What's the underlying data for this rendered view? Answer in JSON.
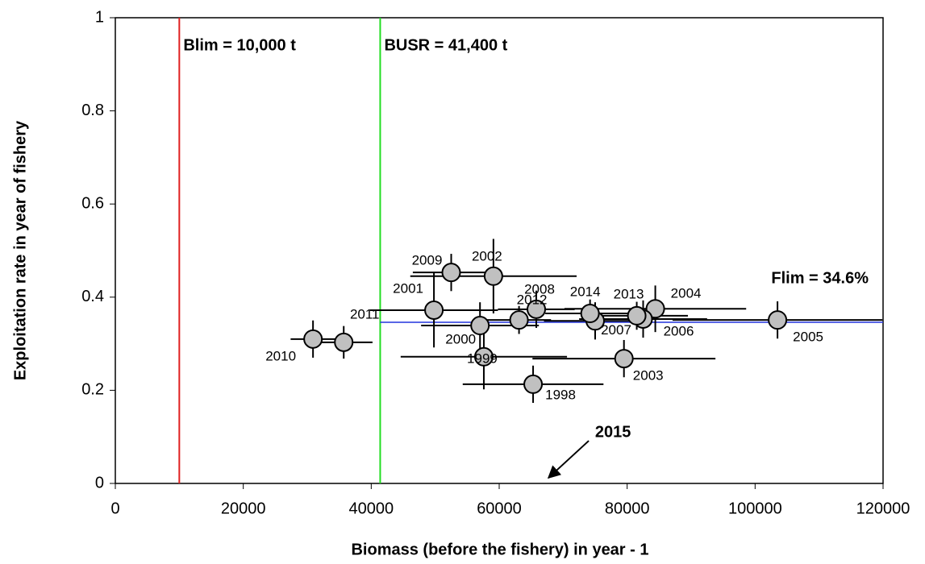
{
  "chart_data": {
    "type": "scatter",
    "x_label": "Biomass (before the fishery) in year - 1",
    "y_label": "Exploitation rate in year of fishery",
    "xlim": [
      0,
      120000
    ],
    "ylim": [
      0,
      1
    ],
    "xticks": [
      0,
      20000,
      40000,
      60000,
      80000,
      100000,
      120000
    ],
    "yticks": [
      0,
      0.2,
      0.4,
      0.6,
      0.8,
      1
    ],
    "series": [
      {
        "color": "#c0c0c0",
        "labels": [
          "1998",
          "1999",
          "2000",
          "2001",
          "2002",
          "2003",
          "2004",
          "2005",
          "2006",
          "2007",
          "2008",
          "2009",
          "2010",
          "2011",
          "2012",
          "2013",
          "2014"
        ],
        "x": [
          65300,
          57600,
          57000,
          49800,
          59100,
          79500,
          84400,
          103500,
          82500,
          75000,
          65800,
          52500,
          30900,
          35700,
          63100,
          81500,
          74200
        ],
        "values": [
          0.213,
          0.272,
          0.339,
          0.372,
          0.445,
          0.268,
          0.375,
          0.351,
          0.353,
          0.349,
          0.374,
          0.453,
          0.31,
          0.303,
          0.351,
          0.36,
          0.365
        ],
        "x_err": [
          11000,
          13000,
          9200,
          10000,
          13000,
          14300,
          14200,
          16400,
          10000,
          8000,
          6000,
          6000,
          3500,
          4500,
          5000,
          8000,
          7000
        ],
        "y_err": [
          0.04,
          0.07,
          0.05,
          0.08,
          0.08,
          0.04,
          0.05,
          0.04,
          0.04,
          0.04,
          0.04,
          0.04,
          0.04,
          0.035,
          0.03,
          0.03,
          0.03
        ]
      }
    ],
    "reference_lines": [
      {
        "label": "Blim = 10,000 t",
        "x": 10000,
        "color": "#e02020"
      },
      {
        "label": "BUSR = 41,400 t",
        "x": 41400,
        "color": "#22dd22"
      },
      {
        "label": "Flim = 34.6%",
        "y": 0.346,
        "x_start": 41400,
        "color": "#2233dd"
      }
    ],
    "annotations": [
      {
        "text": "2015",
        "x": 67700,
        "y": 0.012
      }
    ]
  }
}
